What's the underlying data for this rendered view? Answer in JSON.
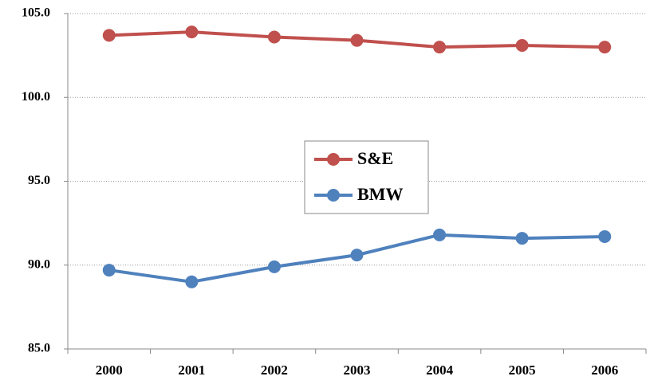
{
  "chart_data": {
    "type": "line",
    "categories": [
      "2000",
      "2001",
      "2002",
      "2003",
      "2004",
      "2005",
      "2006"
    ],
    "series": [
      {
        "name": "S&E",
        "color": "#c0504d",
        "values": [
          103.7,
          103.9,
          103.6,
          103.4,
          103.0,
          103.1,
          103.0
        ]
      },
      {
        "name": "BMW",
        "color": "#4f81bd",
        "values": [
          89.7,
          89.0,
          89.9,
          90.6,
          91.8,
          91.6,
          91.7
        ]
      }
    ],
    "ylim": [
      85,
      105
    ],
    "yticks": [
      {
        "value": 85,
        "label": "85.0"
      },
      {
        "value": 90,
        "label": "90.0"
      },
      {
        "value": 95,
        "label": "95.0"
      },
      {
        "value": 100,
        "label": "100.0"
      },
      {
        "value": 105,
        "label": "105.0"
      }
    ],
    "grid": true,
    "legend": "center"
  }
}
